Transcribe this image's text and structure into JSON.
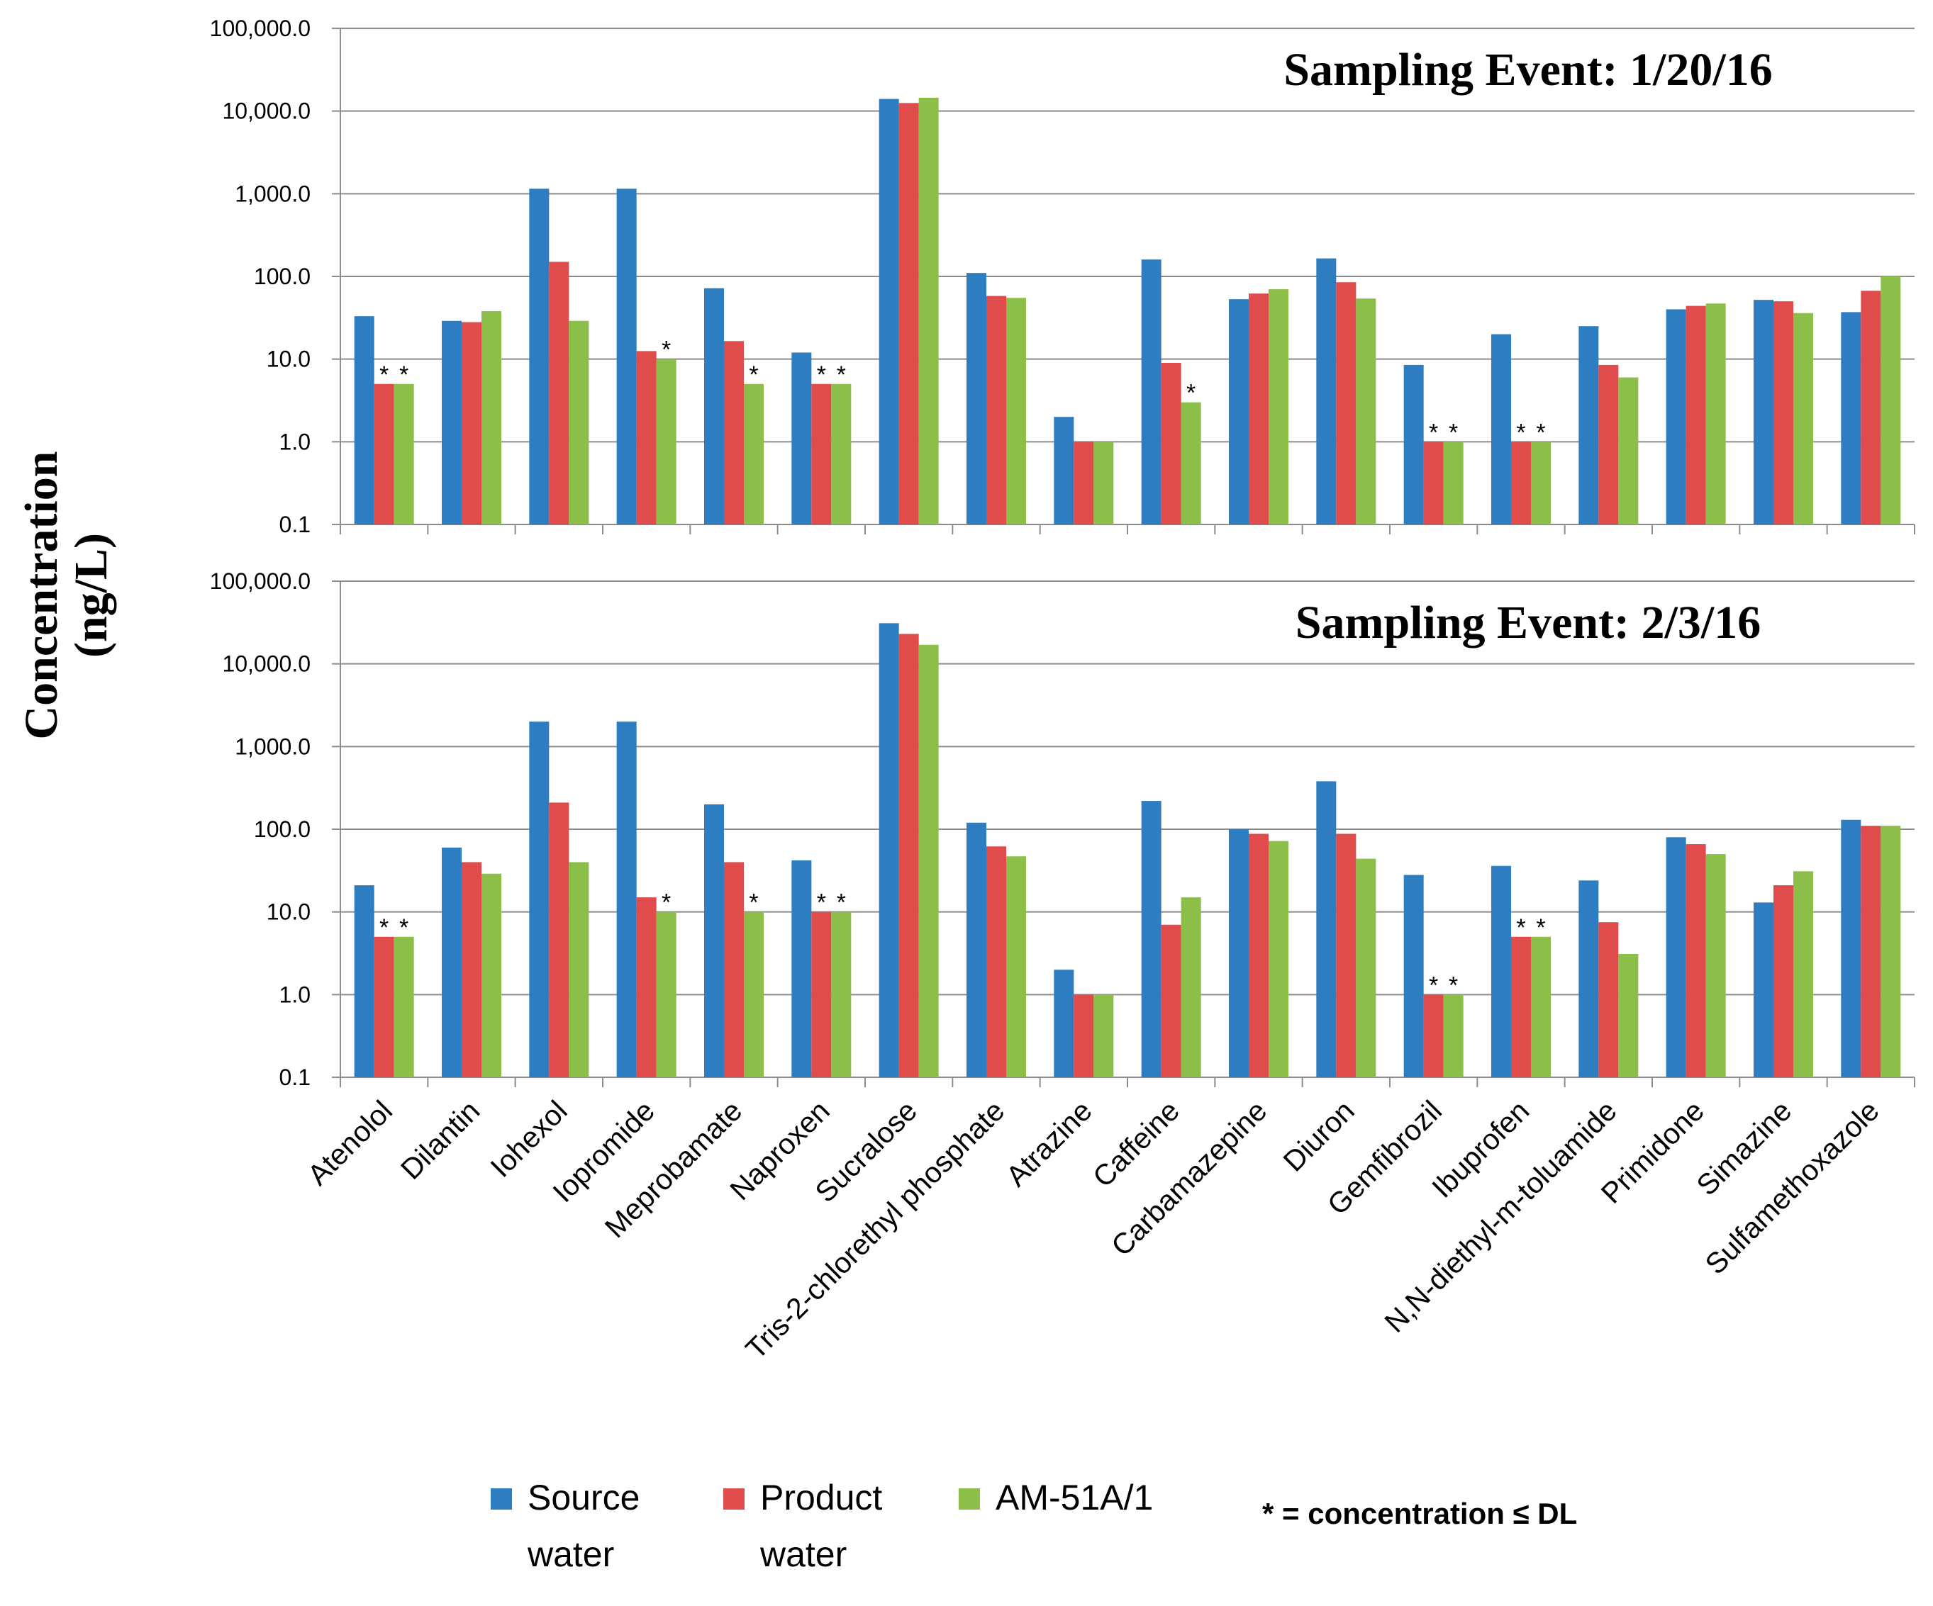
{
  "chart_data": {
    "type": "bar",
    "ylabel_lines": [
      "Concentration",
      "(ng/L)"
    ],
    "y_scale": "log",
    "ylim": [
      0.1,
      100000
    ],
    "y_ticks": [
      0.1,
      1,
      10,
      100,
      1000,
      10000,
      100000
    ],
    "y_tick_labels": [
      "0.1",
      "1.0",
      "10.0",
      "100.0",
      "1,000.0",
      "10,000.0",
      "100,000.0"
    ],
    "grid": true,
    "categories": [
      "Atenolol",
      "Dilantin",
      "Iohexol",
      "Iopromide",
      "Meprobamate",
      "Naproxen",
      "Sucralose",
      "Tris-2-chlorethyl phosphate",
      "Atrazine",
      "Caffeine",
      "Carbamazepine",
      "Diuron",
      "Gemfibrozil",
      "Ibuprofen",
      "N,N-diethyl-m-toluamide",
      "Primidone",
      "Simazine",
      "Sulfamethoxazole"
    ],
    "series_colors": [
      "#2e7dc1",
      "#e04b4b",
      "#8cbf4a"
    ],
    "legend": {
      "position": "bottom",
      "entries": [
        {
          "lines": [
            "Source",
            "water"
          ],
          "color": "#2e7dc1"
        },
        {
          "lines": [
            "Product",
            "water"
          ],
          "color": "#e04b4b"
        },
        {
          "lines": [
            "AM-51A/1"
          ],
          "color": "#8cbf4a"
        }
      ],
      "note": "* = concentration ≤ DL"
    },
    "panels": [
      {
        "title": "Sampling Event: 1/20/16",
        "series": [
          {
            "values": [
              33,
              29,
              1150,
              1150,
              72,
              12,
              14000,
              110,
              2,
              160,
              53,
              165,
              8.5,
              20,
              25,
              40,
              52,
              37
            ]
          },
          {
            "values": [
              5,
              28,
              150,
              12.5,
              16.5,
              5,
              12500,
              58,
              1,
              9,
              62,
              85,
              1,
              1,
              8.5,
              44,
              50,
              67
            ]
          },
          {
            "values": [
              5,
              38,
              29,
              10,
              5,
              5,
              14500,
              55,
              1,
              3,
              70,
              54,
              1,
              1,
              6,
              47,
              36,
              100
            ]
          }
        ],
        "stars": [
          [
            0,
            1
          ],
          [
            0,
            2
          ],
          [
            3,
            2
          ],
          [
            4,
            2
          ],
          [
            5,
            1
          ],
          [
            5,
            2
          ],
          [
            9,
            2
          ],
          [
            12,
            1
          ],
          [
            12,
            2
          ],
          [
            13,
            1
          ],
          [
            13,
            2
          ]
        ]
      },
      {
        "title": "Sampling Event: 2/3/16",
        "series": [
          {
            "values": [
              21,
              60,
              2000,
              2000,
              200,
              42,
              31000,
              120,
              2,
              220,
              100,
              380,
              28,
              36,
              24,
              80,
              13,
              130
            ]
          },
          {
            "values": [
              5,
              40,
              210,
              15,
              40,
              10,
              23000,
              62,
              1,
              7,
              88,
              88,
              1,
              5,
              7.5,
              66,
              21,
              110
            ]
          },
          {
            "values": [
              5,
              29,
              40,
              10,
              10,
              10,
              17000,
              47,
              1,
              15,
              72,
              44,
              1,
              5,
              3.1,
              50,
              31,
              110
            ]
          }
        ],
        "stars": [
          [
            0,
            1
          ],
          [
            0,
            2
          ],
          [
            3,
            2
          ],
          [
            4,
            2
          ],
          [
            5,
            1
          ],
          [
            5,
            2
          ],
          [
            12,
            1
          ],
          [
            12,
            2
          ],
          [
            13,
            1
          ],
          [
            13,
            2
          ]
        ]
      }
    ]
  }
}
